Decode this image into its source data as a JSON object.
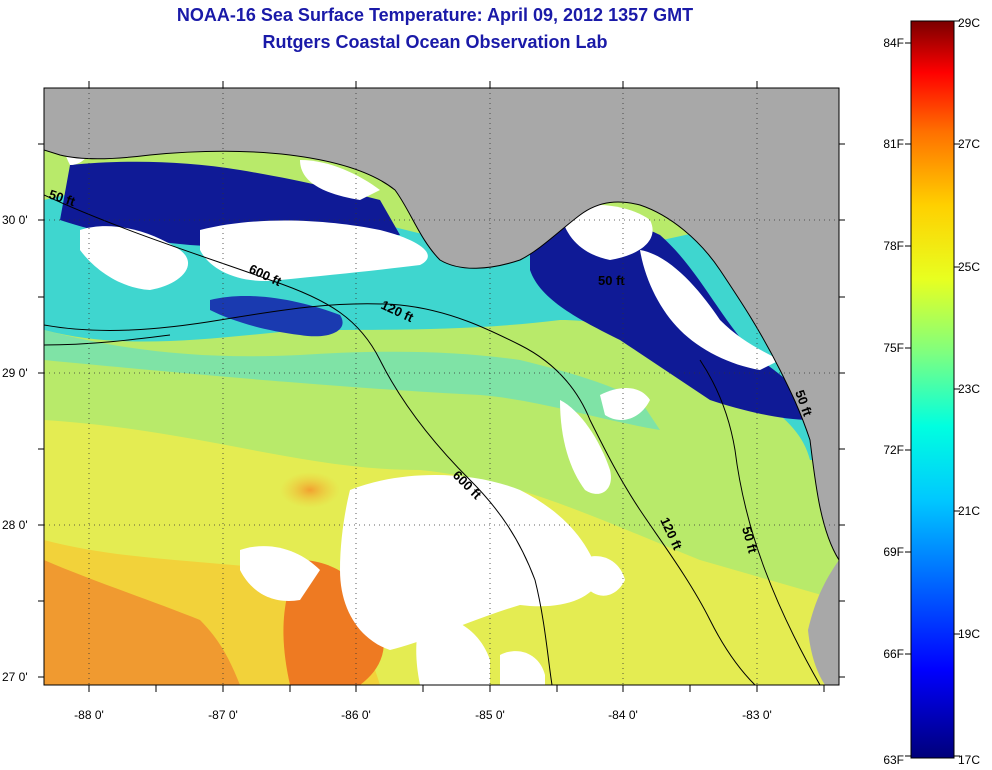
{
  "header": {
    "title": "NOAA-16 Sea Surface Temperature:  April 09, 2012 1357 GMT",
    "subtitle": "Rutgers Coastal Ocean Observation Lab"
  },
  "map": {
    "lat_labels": [
      "30 0'",
      "29 0'",
      "28 0'",
      "27 0'"
    ],
    "lon_labels": [
      "-88 0'",
      "-87 0'",
      "-86 0'",
      "-85 0'",
      "-84 0'",
      "-83 0'"
    ],
    "isobath_labels": [
      "50 ft",
      "600 ft",
      "120 ft",
      "50 ft",
      "600 ft",
      "120 ft",
      "50 ft",
      "50 ft"
    ]
  },
  "colorbar": {
    "fahrenheit_labels": [
      "84F",
      "81F",
      "78F",
      "75F",
      "72F",
      "69F",
      "66F",
      "63F"
    ],
    "celsius_labels": [
      "29C",
      "27C",
      "25C",
      "23C",
      "21C",
      "19C",
      "17C"
    ]
  },
  "colors": {
    "title": "#1a1aa8",
    "land": "#a9a9a9",
    "cloud": "#ffffff",
    "sst_cold": "#0d0d8c",
    "sst_cool": "#1fd8d8",
    "sst_mid": "#9fe87a",
    "sst_warm": "#e8e83a",
    "sst_hot": "#f07020"
  }
}
